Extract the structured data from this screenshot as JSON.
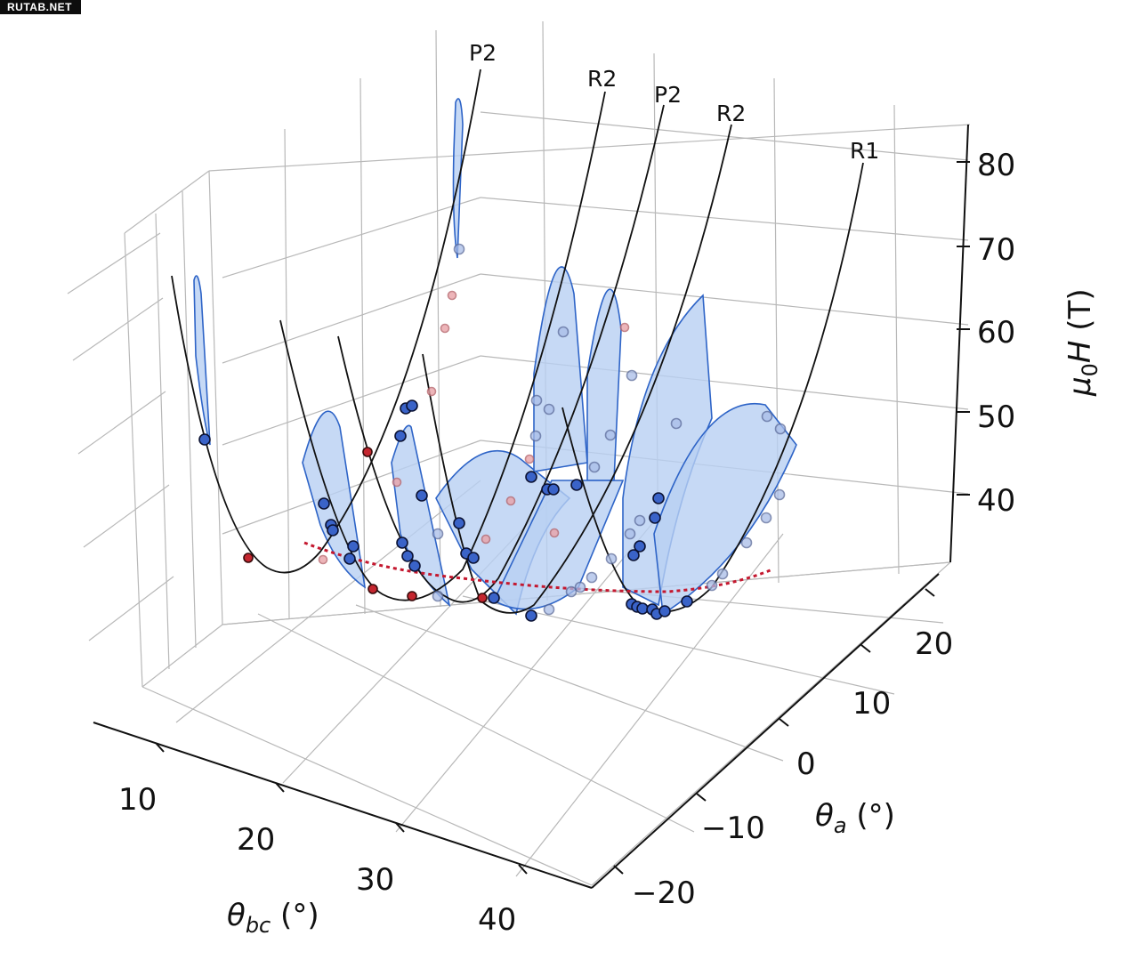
{
  "watermark": "RUTAB.NET",
  "chart_data": {
    "type": "scatter",
    "title": "",
    "axes": {
      "x": {
        "ticks": [
          "10",
          "20",
          "30",
          "40"
        ],
        "range": [
          5,
          45
        ]
      },
      "y": {
        "ticks": [
          "−20",
          "−10",
          "0",
          "10",
          "20"
        ],
        "range": [
          -25,
          28
        ]
      },
      "z": {
        "ticks": [
          "40",
          "50",
          "60",
          "70",
          "80"
        ],
        "range": [
          32,
          85
        ]
      }
    },
    "grid": true,
    "curve_labels": [
      "P2",
      "R2",
      "P2",
      "R2",
      "R1"
    ],
    "colors": {
      "measured_points": "#3a63c8",
      "faint_points": "#a9bde8",
      "red_points": "#c4262f",
      "fill": "#b8cff3",
      "fill_edge": "#2e64c7",
      "min_path": "#c4182f",
      "curves": "#111111"
    }
  }
}
